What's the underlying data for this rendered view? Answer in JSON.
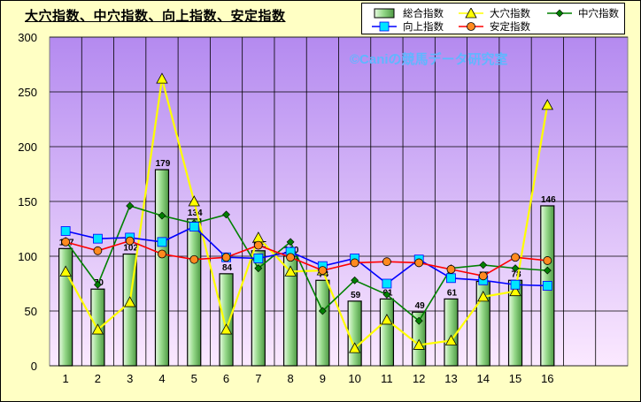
{
  "chart_data": {
    "type": "bar+line",
    "title": "大穴指数、中穴指数、向上指数、安定指数",
    "watermark": "©Caniの競馬データ研究室",
    "categories": [
      "1",
      "2",
      "3",
      "4",
      "5",
      "6",
      "7",
      "8",
      "9",
      "10",
      "11",
      "12",
      "13",
      "14",
      "15",
      "16"
    ],
    "ylim": [
      0,
      300
    ],
    "yticks": [
      "0",
      "50",
      "100",
      "150",
      "200",
      "250",
      "300"
    ],
    "grid": true,
    "legend_position": "top-right",
    "plot_bg_top": "#B48AF0",
    "plot_bg_bottom": "#FBE9FF",
    "page_bg": "#FFFFC4",
    "series": [
      {
        "name": "総合指数",
        "kind": "bar",
        "color": "#96D98A",
        "values": [
          107,
          70,
          102,
          179,
          134,
          84,
          105,
          100,
          78,
          59,
          61,
          49,
          61,
          77,
          78,
          146
        ],
        "labels": [
          "107",
          "70",
          "102",
          "179",
          "134",
          "84",
          "105",
          "100",
          "78",
          "59",
          "61",
          "49",
          "61",
          "77",
          "78",
          "146"
        ]
      },
      {
        "name": "大穴指数",
        "kind": "line",
        "color": "#FFFF00",
        "marker": "triangle",
        "values": [
          86,
          33,
          58,
          262,
          150,
          33,
          117,
          86,
          87,
          16,
          42,
          19,
          23,
          63,
          68,
          238
        ]
      },
      {
        "name": "中穴指数",
        "kind": "line",
        "color": "#008000",
        "marker": "diamond",
        "values": [
          114,
          74,
          146,
          137,
          130,
          138,
          89,
          113,
          50,
          78,
          65,
          41,
          89,
          92,
          89,
          87
        ]
      },
      {
        "name": "向上指数",
        "kind": "line",
        "color": "#0000FF",
        "marker": "square",
        "values": [
          123,
          116,
          117,
          113,
          127,
          99,
          98,
          104,
          91,
          98,
          75,
          97,
          80,
          78,
          74,
          73
        ]
      },
      {
        "name": "安定指数",
        "kind": "line",
        "color": "#FF0000",
        "marker": "circle",
        "values": [
          113,
          105,
          114,
          102,
          97,
          99,
          110,
          99,
          87,
          94,
          95,
          94,
          88,
          82,
          99,
          96
        ]
      }
    ]
  }
}
